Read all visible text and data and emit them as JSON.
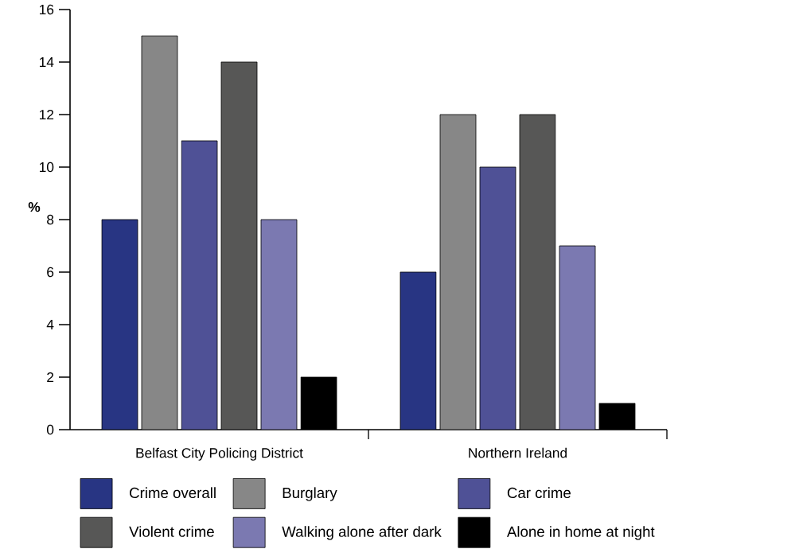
{
  "chart_data": {
    "type": "bar",
    "ylabel": "%",
    "categories": [
      "Belfast City Policing District",
      "Northern Ireland"
    ],
    "ylim": [
      0,
      16
    ],
    "yticks": [
      0,
      2,
      4,
      6,
      8,
      10,
      12,
      14,
      16
    ],
    "legend": "bottom",
    "series": [
      {
        "name": "Crime overall",
        "color": "#283583",
        "values": [
          8,
          6
        ]
      },
      {
        "name": "Burglary",
        "color": "#878787",
        "values": [
          15,
          12
        ]
      },
      {
        "name": "Car crime",
        "color": "#4f5196",
        "values": [
          11,
          10
        ]
      },
      {
        "name": "Violent crime",
        "color": "#575756",
        "values": [
          14,
          12
        ]
      },
      {
        "name": "Walking alone after dark",
        "color": "#7b79b1",
        "values": [
          8,
          7
        ]
      },
      {
        "name": "Alone in home at night",
        "color": "#000000",
        "values": [
          2,
          1
        ]
      }
    ]
  }
}
